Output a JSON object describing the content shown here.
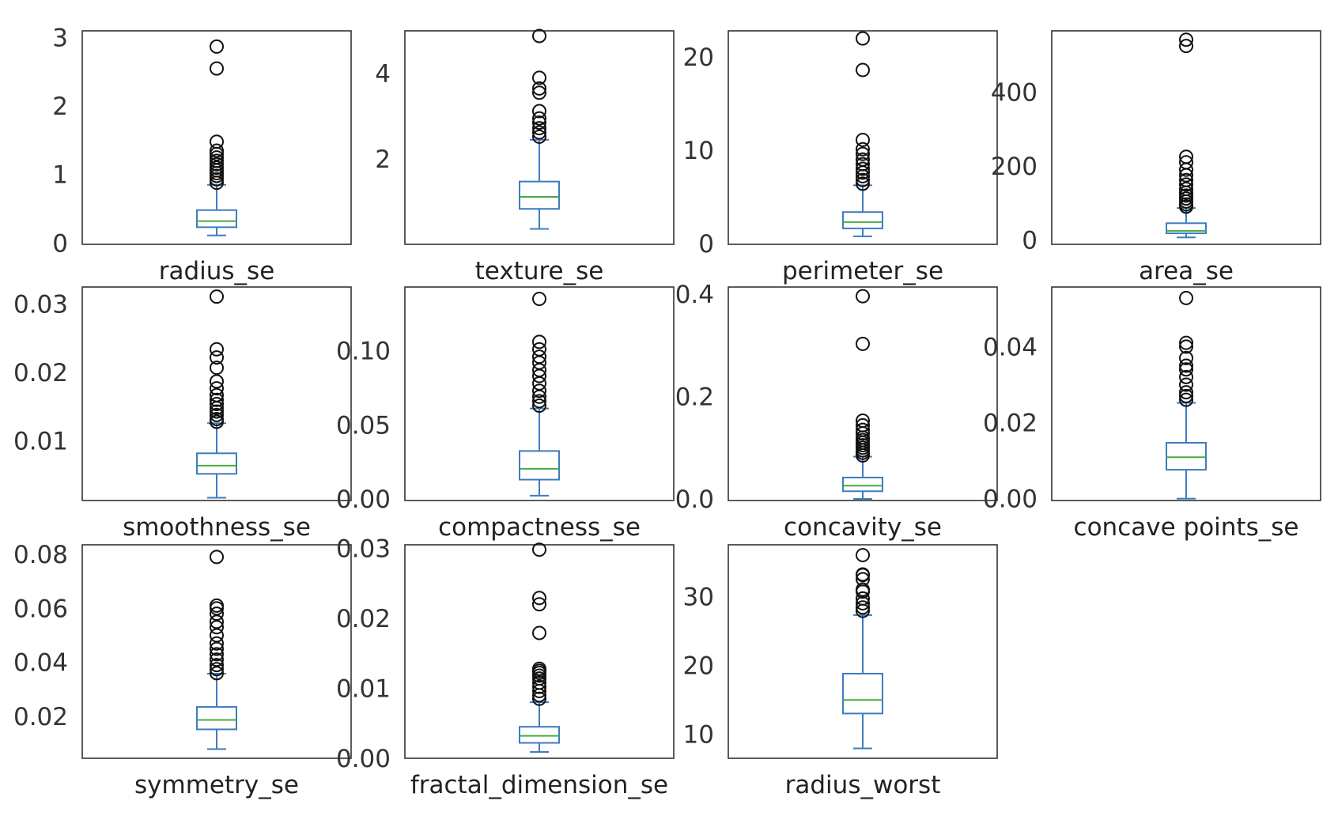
{
  "chart_data": [
    {
      "type": "box",
      "xlabel": "radius_se",
      "yticks": [
        0,
        1,
        2,
        3
      ],
      "ylim": [
        -0.02,
        3.1
      ],
      "box": {
        "lower_whisker": 0.11,
        "q1": 0.23,
        "median": 0.32,
        "q3": 0.48,
        "upper_whisker": 0.85
      },
      "outliers": [
        0.88,
        0.93,
        0.98,
        1.02,
        1.06,
        1.1,
        1.15,
        1.2,
        1.25,
        1.3,
        1.35,
        1.48,
        2.55,
        2.87
      ]
    },
    {
      "type": "box",
      "xlabel": "texture_se",
      "yticks": [
        2,
        4
      ],
      "ylim": [
        0.0,
        5.0
      ],
      "box": {
        "lower_whisker": 0.36,
        "q1": 0.83,
        "median": 1.11,
        "q3": 1.47,
        "upper_whisker": 2.45
      },
      "outliers": [
        2.52,
        2.62,
        2.72,
        2.85,
        2.95,
        3.12,
        3.55,
        3.65,
        3.9,
        4.88
      ]
    },
    {
      "type": "box",
      "xlabel": "perimeter_se",
      "yticks": [
        0,
        10,
        20
      ],
      "ylim": [
        -0.1,
        22.8
      ],
      "box": {
        "lower_whisker": 0.76,
        "q1": 1.61,
        "median": 2.29,
        "q3": 3.36,
        "upper_whisker": 6.23
      },
      "outliers": [
        6.4,
        6.8,
        7.2,
        7.6,
        8.0,
        8.5,
        9.0,
        9.6,
        10.1,
        11.1,
        18.6,
        21.98
      ]
    },
    {
      "type": "box",
      "xlabel": "area_se",
      "yticks": [
        0,
        200,
        400
      ],
      "ylim": [
        -12,
        566
      ],
      "box": {
        "lower_whisker": 6.8,
        "q1": 17.9,
        "median": 24.5,
        "q3": 45.2,
        "upper_whisker": 86.2
      },
      "outliers": [
        90,
        96,
        104,
        112,
        120,
        128,
        138,
        150,
        162,
        175,
        190,
        210,
        225,
        525,
        542
      ]
    },
    {
      "type": "box",
      "xlabel": "smoothness_se",
      "yticks": [
        0.01,
        0.02,
        0.03
      ],
      "ylim": [
        0.0013,
        0.0325
      ],
      "box": {
        "lower_whisker": 0.0017,
        "q1": 0.0052,
        "median": 0.0064,
        "q3": 0.0082,
        "upper_whisker": 0.0126
      },
      "outliers": [
        0.0128,
        0.0132,
        0.0138,
        0.0143,
        0.0148,
        0.0154,
        0.016,
        0.0167,
        0.0177,
        0.0187,
        0.0207,
        0.0222,
        0.0234,
        0.0311
      ]
    },
    {
      "type": "box",
      "xlabel": "compactness_se",
      "yticks": [
        0.0,
        0.05,
        0.1
      ],
      "ylim": [
        -0.001,
        0.143
      ],
      "box": {
        "lower_whisker": 0.0023,
        "q1": 0.0131,
        "median": 0.0204,
        "q3": 0.0324,
        "upper_whisker": 0.0611
      },
      "outliers": [
        0.063,
        0.066,
        0.069,
        0.073,
        0.078,
        0.083,
        0.087,
        0.092,
        0.096,
        0.101,
        0.106,
        0.135
      ]
    },
    {
      "type": "box",
      "xlabel": "concavity_se",
      "yticks": [
        0.0,
        0.2,
        0.4
      ],
      "ylim": [
        -0.003,
        0.414
      ],
      "box": {
        "lower_whisker": 0.0,
        "q1": 0.0151,
        "median": 0.0259,
        "q3": 0.0419,
        "upper_whisker": 0.0827
      },
      "outliers": [
        0.085,
        0.09,
        0.095,
        0.1,
        0.105,
        0.11,
        0.115,
        0.12,
        0.128,
        0.135,
        0.144,
        0.153,
        0.303,
        0.396
      ]
    },
    {
      "type": "box",
      "xlabel": "concave points_se",
      "yticks": [
        0.0,
        0.02,
        0.04
      ],
      "ylim": [
        -0.0005,
        0.0557
      ],
      "box": {
        "lower_whisker": 0.0,
        "q1": 0.0076,
        "median": 0.0109,
        "q3": 0.0147,
        "upper_whisker": 0.0252
      },
      "outliers": [
        0.026,
        0.027,
        0.028,
        0.03,
        0.032,
        0.034,
        0.035,
        0.037,
        0.04,
        0.041,
        0.0528
      ]
    },
    {
      "type": "box",
      "xlabel": "symmetry_se",
      "yticks": [
        0.02,
        0.04,
        0.06,
        0.08
      ],
      "ylim": [
        0.0045,
        0.0835
      ],
      "box": {
        "lower_whisker": 0.0079,
        "q1": 0.0152,
        "median": 0.0187,
        "q3": 0.0235,
        "upper_whisker": 0.0358
      },
      "outliers": [
        0.036,
        0.0375,
        0.039,
        0.041,
        0.043,
        0.045,
        0.047,
        0.05,
        0.053,
        0.055,
        0.058,
        0.06,
        0.061,
        0.079
      ]
    },
    {
      "type": "box",
      "xlabel": "fractal_dimension_se",
      "yticks": [
        0.0,
        0.01,
        0.02,
        0.03
      ],
      "ylim": [
        0.0,
        0.0305
      ],
      "box": {
        "lower_whisker": 0.0009,
        "q1": 0.0022,
        "median": 0.0032,
        "q3": 0.0045,
        "upper_whisker": 0.008
      },
      "outliers": [
        0.0085,
        0.009,
        0.0096,
        0.0102,
        0.0108,
        0.0114,
        0.0118,
        0.0122,
        0.0125,
        0.0128,
        0.0179,
        0.022,
        0.0229,
        0.0298
      ]
    },
    {
      "type": "box",
      "xlabel": "radius_worst",
      "yticks": [
        10,
        20,
        30
      ],
      "ylim": [
        6.5,
        37.5
      ],
      "box": {
        "lower_whisker": 7.93,
        "q1": 13.0,
        "median": 14.97,
        "q3": 18.79,
        "upper_whisker": 27.3
      },
      "outliers": [
        27.9,
        28.4,
        29.0,
        29.7,
        30.7,
        31.0,
        32.5,
        33.1,
        33.2,
        36.0
      ]
    }
  ]
}
